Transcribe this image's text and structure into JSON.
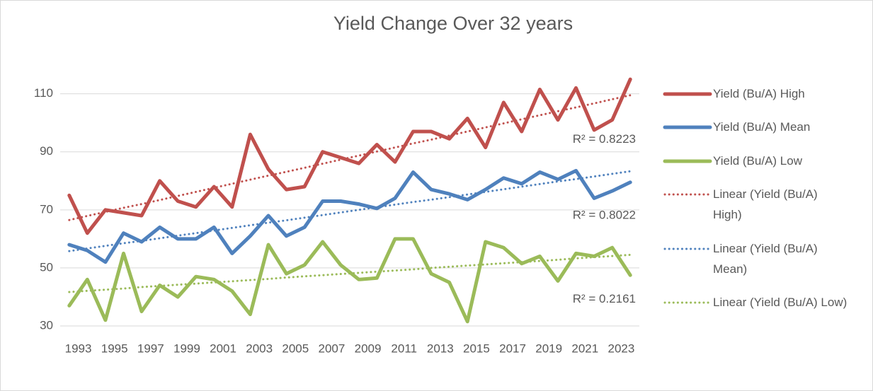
{
  "chart_data": {
    "type": "line",
    "title": "Yield Change Over 32 years",
    "categories": [
      "1993",
      null,
      "1995",
      null,
      "1997",
      null,
      "1999",
      null,
      "2001",
      null,
      "2003",
      null,
      "2005",
      null,
      "2007",
      null,
      "2009",
      null,
      "2011",
      null,
      "2013",
      null,
      "2015",
      null,
      "2017",
      null,
      "2019",
      null,
      "2021",
      null,
      "2023",
      null
    ],
    "ylim": [
      30,
      116
    ],
    "yticks": [
      30,
      50,
      70,
      90,
      110
    ],
    "grid": true,
    "legend": "right",
    "series": [
      {
        "name": "Yield (Bu/A) High",
        "color": "#c0504d",
        "style": "solid",
        "values": [
          75,
          62,
          70,
          69,
          68,
          80,
          73,
          71,
          78,
          71,
          96,
          84,
          77,
          78,
          90,
          88,
          86,
          92.5,
          86.5,
          97,
          97,
          94.5,
          101.5,
          91.5,
          107,
          97,
          111.5,
          101,
          112,
          97.5,
          101,
          115
        ]
      },
      {
        "name": "Yield (Bu/A) Mean",
        "color": "#4f81bd",
        "style": "solid",
        "values": [
          58,
          56,
          52,
          62,
          59,
          64,
          60,
          60,
          64,
          55,
          61,
          68,
          61,
          64,
          73,
          73,
          72,
          70.5,
          74,
          83,
          77,
          75.5,
          73.5,
          77,
          81,
          79,
          83,
          80.5,
          83.5,
          74,
          76.5,
          79.5
        ]
      },
      {
        "name": "Yield (Bu/A) Low",
        "color": "#9bbb59",
        "style": "solid",
        "values": [
          37,
          46,
          32,
          55,
          35,
          44,
          40,
          47,
          46,
          42,
          34,
          58,
          48,
          51,
          59,
          51,
          46,
          46.5,
          60,
          60,
          48,
          45,
          31.5,
          59,
          57,
          51.5,
          54,
          45.5,
          55,
          54,
          57,
          47.5
        ]
      },
      {
        "name": "Linear (Yield (Bu/A) High)",
        "color": "#c0504d",
        "style": "dotted",
        "annotation": "R² = 0.8223",
        "values": [
          66.5,
          67.9,
          69.3,
          70.7,
          72.0,
          73.4,
          74.8,
          76.2,
          77.6,
          79.0,
          80.4,
          81.8,
          83.1,
          84.5,
          85.9,
          87.3,
          88.7,
          90.1,
          91.5,
          92.9,
          94.2,
          95.6,
          97.0,
          98.4,
          99.8,
          101.2,
          102.6,
          104.0,
          105.3,
          106.7,
          108.1,
          109.5
        ]
      },
      {
        "name": "Linear (Yield (Bu/A) Mean)",
        "color": "#4f81bd",
        "style": "dotted",
        "annotation": "R² = 0.8022",
        "values": [
          55.8,
          56.7,
          57.6,
          58.5,
          59.3,
          60.2,
          61.1,
          62.0,
          62.9,
          63.8,
          64.7,
          65.6,
          66.4,
          67.3,
          68.2,
          69.1,
          70.0,
          70.9,
          71.8,
          72.7,
          73.5,
          74.4,
          75.3,
          76.2,
          77.1,
          78.0,
          78.9,
          79.8,
          80.6,
          81.5,
          82.4,
          83.3
        ]
      },
      {
        "name": "Linear (Yield (Bu/A) Low)",
        "color": "#9bbb59",
        "style": "dotted",
        "annotation": "R² = 0.2161",
        "values": [
          41.7,
          42.1,
          42.5,
          42.9,
          43.4,
          43.8,
          44.2,
          44.6,
          45.0,
          45.4,
          45.8,
          46.2,
          46.7,
          47.1,
          47.5,
          47.9,
          48.3,
          48.7,
          49.1,
          49.5,
          50.0,
          50.4,
          50.8,
          51.2,
          51.6,
          52.0,
          52.4,
          52.8,
          53.3,
          53.7,
          54.1,
          54.5
        ]
      }
    ]
  }
}
